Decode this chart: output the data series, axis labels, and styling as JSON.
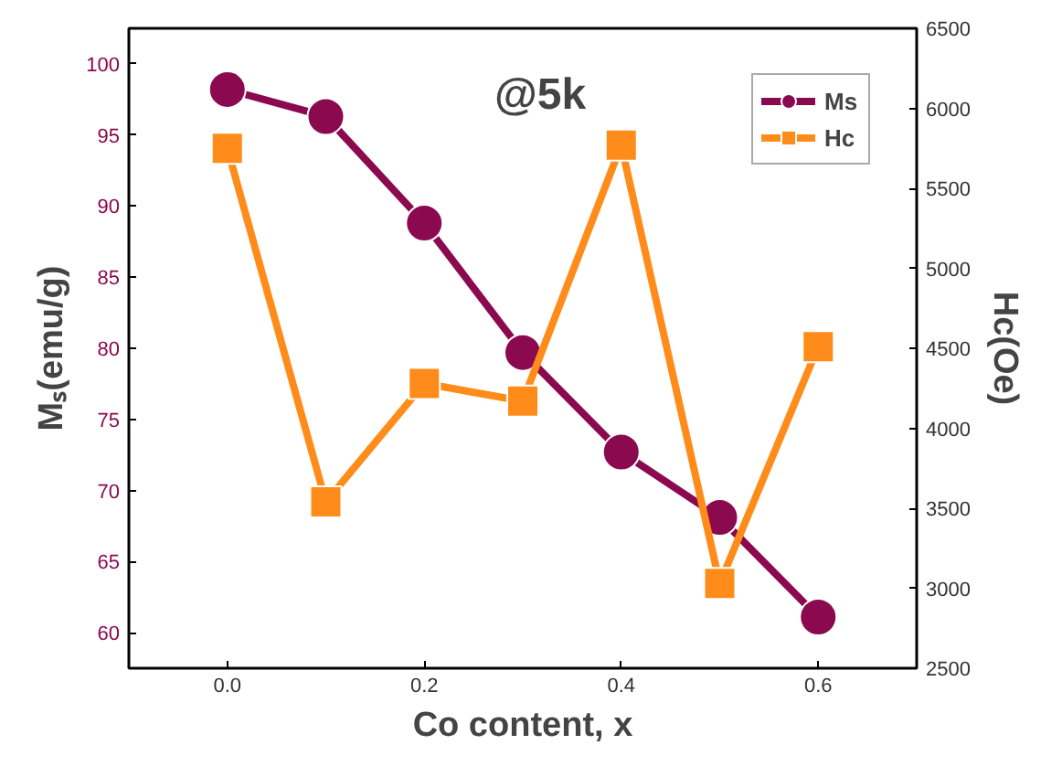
{
  "chart_data": {
    "type": "line",
    "xlabel": "Co content, x",
    "ylabel": "Mₛ(emu/g)",
    "y2label": "Hc(Oe)",
    "annotations": [
      "@5k"
    ],
    "x": [
      0.0,
      0.1,
      0.2,
      0.3,
      0.4,
      0.5,
      0.6
    ],
    "xlim": [
      -0.1,
      0.7
    ],
    "xticks": [
      {
        "value": 0.0,
        "label": "0.0"
      },
      0.2,
      0.4,
      0.6
    ],
    "ylim": [
      57.5,
      102.5
    ],
    "yticks": [
      60,
      65,
      70,
      75,
      80,
      85,
      90,
      95,
      100
    ],
    "y2lim": [
      2500,
      6500
    ],
    "y2ticks": [
      2500,
      3000,
      3500,
      4000,
      4500,
      5000,
      5500,
      6000,
      6500
    ],
    "grid": false,
    "legend": "top right",
    "line_style": "solid",
    "series": [
      {
        "name": "Ms",
        "color": "#8b0a4f",
        "marker": "circle",
        "values": [
          98.2,
          96.3,
          88.8,
          79.7,
          72.7,
          68.1,
          61.1
        ]
      },
      {
        "name": "Hc",
        "color": "#ff8c1a",
        "marker": "square",
        "axis": "y2",
        "values": [
          5750,
          3540,
          4280,
          4170,
          5770,
          3030,
          4510
        ]
      }
    ]
  }
}
